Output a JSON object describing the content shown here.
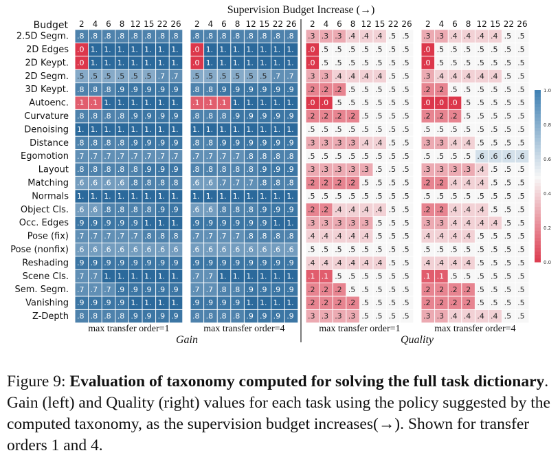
{
  "chart_data": {
    "type": "heatmap",
    "title": "Supervision Budget Increase (→)",
    "row_header": "Budget",
    "budgets": [
      "2",
      "4",
      "6",
      "8",
      "12",
      "15",
      "22",
      "26"
    ],
    "tasks": [
      "2.5D Segm.",
      "2D Edges",
      "2D Keypt.",
      "2D Segm.",
      "3D Keypt.",
      "Autoenc.",
      "Curvature",
      "Denoising",
      "Distance",
      "Egomotion",
      "Layout",
      "Matching",
      "Normals",
      "Object Cls.",
      "Occ. Edges",
      "Pose (fix)",
      "Pose (nonfix)",
      "Reshading",
      "Scene Cls.",
      "Sem. Segm.",
      "Vanishing",
      "Z-Depth"
    ],
    "group_labels": {
      "gain": "Gain",
      "quality": "Quality"
    },
    "colorbar_ticks": [
      "1.0",
      "0.8",
      "0.6",
      "0.4",
      "0.2",
      "0.0"
    ],
    "panels": [
      {
        "metric": "gain",
        "label": "max transfer order=1",
        "values": [
          [
            ".8",
            ".8",
            ".8",
            ".8",
            ".8",
            ".8",
            ".8",
            ".8"
          ],
          [
            ".0",
            "1.",
            "1.",
            "1.",
            "1.",
            "1.",
            "1.",
            "1."
          ],
          [
            ".0",
            "1.",
            "1.",
            "1.",
            "1.",
            "1.",
            "1.",
            "1."
          ],
          [
            ".5",
            ".5",
            ".5",
            ".5",
            ".5",
            ".5",
            ".7",
            ".7"
          ],
          [
            ".8",
            ".8",
            ".8",
            ".9",
            ".9",
            ".9",
            ".9",
            ".9"
          ],
          [
            ".1",
            ".1",
            "1.",
            "1.",
            "1.",
            "1.",
            "1.",
            "1."
          ],
          [
            ".8",
            ".8",
            ".8",
            ".8",
            ".9",
            ".9",
            ".9",
            ".9"
          ],
          [
            "1.",
            "1.",
            "1.",
            "1.",
            "1.",
            "1.",
            "1.",
            "1."
          ],
          [
            ".8",
            ".8",
            ".8",
            ".8",
            ".9",
            ".9",
            ".9",
            ".9"
          ],
          [
            ".7",
            ".7",
            ".7",
            ".7",
            ".7",
            ".7",
            ".7",
            ".7"
          ],
          [
            ".8",
            ".8",
            ".8",
            ".8",
            ".8",
            ".9",
            ".9",
            ".9"
          ],
          [
            ".6",
            ".6",
            ".6",
            ".6",
            ".8",
            ".8",
            ".8",
            ".8"
          ],
          [
            "1.",
            "1.",
            "1.",
            "1.",
            "1.",
            "1.",
            "1.",
            "1."
          ],
          [
            ".6",
            ".6",
            ".8",
            ".8",
            ".8",
            ".8",
            ".9",
            ".9"
          ],
          [
            ".9",
            ".9",
            ".9",
            ".9",
            ".9",
            "1.",
            "1.",
            "1."
          ],
          [
            ".7",
            ".7",
            ".7",
            ".7",
            ".7",
            ".8",
            ".8",
            ".8"
          ],
          [
            ".6",
            ".6",
            ".6",
            ".6",
            ".6",
            ".6",
            ".6",
            ".6"
          ],
          [
            ".9",
            ".9",
            ".9",
            ".9",
            ".9",
            ".9",
            ".9",
            ".9"
          ],
          [
            ".7",
            ".7",
            "1.",
            "1.",
            "1.",
            "1.",
            "1.",
            "1."
          ],
          [
            ".7",
            ".7",
            ".7",
            ".9",
            ".9",
            ".9",
            ".9",
            ".9"
          ],
          [
            ".9",
            ".9",
            ".9",
            ".9",
            "1.",
            "1.",
            "1.",
            "1."
          ],
          [
            ".8",
            ".8",
            ".8",
            ".8",
            ".9",
            ".9",
            ".9",
            ".9"
          ]
        ]
      },
      {
        "metric": "gain",
        "label": "max transfer order=4",
        "values": [
          [
            ".8",
            ".8",
            ".8",
            ".8",
            ".8",
            ".8",
            ".8",
            ".8"
          ],
          [
            ".0",
            "1.",
            "1.",
            "1.",
            "1.",
            "1.",
            "1.",
            "1."
          ],
          [
            ".0",
            "1.",
            "1.",
            "1.",
            "1.",
            "1.",
            "1.",
            "1."
          ],
          [
            ".5",
            ".5",
            ".5",
            ".5",
            ".5",
            ".5",
            ".7",
            ".7"
          ],
          [
            ".8",
            ".8",
            ".9",
            ".9",
            ".9",
            ".9",
            ".9",
            ".9"
          ],
          [
            ".1",
            ".1",
            ".1",
            "1.",
            "1.",
            "1.",
            "1.",
            "1."
          ],
          [
            ".8",
            ".8",
            ".8",
            ".9",
            ".9",
            ".9",
            ".9",
            ".9"
          ],
          [
            "1.",
            "1.",
            "1.",
            "1.",
            "1.",
            "1.",
            "1.",
            "1."
          ],
          [
            ".8",
            ".8",
            ".9",
            ".9",
            ".9",
            ".9",
            ".9",
            ".9"
          ],
          [
            ".7",
            ".7",
            ".7",
            ".7",
            ".8",
            ".8",
            ".8",
            ".8"
          ],
          [
            ".8",
            ".8",
            ".8",
            ".8",
            ".8",
            ".9",
            ".9",
            ".9"
          ],
          [
            ".6",
            ".6",
            ".7",
            ".7",
            ".7",
            ".8",
            ".8",
            ".8"
          ],
          [
            "1.",
            "1.",
            "1.",
            "1.",
            "1.",
            "1.",
            "1.",
            "1."
          ],
          [
            ".6",
            ".6",
            ".8",
            ".8",
            ".8",
            ".9",
            ".9",
            ".9"
          ],
          [
            ".9",
            ".9",
            ".9",
            ".9",
            ".9",
            ".9",
            "1.",
            "1."
          ],
          [
            ".7",
            ".7",
            ".7",
            ".7",
            ".8",
            ".8",
            ".8",
            ".8"
          ],
          [
            ".6",
            ".6",
            ".6",
            ".6",
            ".6",
            ".6",
            ".6",
            ".6"
          ],
          [
            ".9",
            ".9",
            ".9",
            ".9",
            ".9",
            ".9",
            ".9",
            ".9"
          ],
          [
            ".7",
            ".7",
            "1.",
            "1.",
            "1.",
            "1.",
            "1.",
            "1."
          ],
          [
            ".7",
            ".7",
            ".8",
            ".8",
            ".9",
            ".9",
            ".9",
            ".9"
          ],
          [
            ".9",
            ".9",
            ".9",
            ".9",
            "1.",
            "1.",
            "1.",
            "1."
          ],
          [
            ".8",
            ".8",
            ".8",
            ".8",
            ".9",
            ".9",
            ".9",
            ".9"
          ]
        ]
      },
      {
        "metric": "quality",
        "label": "max transfer order=1",
        "values": [
          [
            ".3",
            ".3",
            ".3",
            ".4",
            ".4",
            ".4",
            ".5",
            ".5"
          ],
          [
            ".0",
            ".5",
            ".5",
            ".5",
            ".5",
            ".5",
            ".5",
            ".5"
          ],
          [
            ".0",
            ".5",
            ".5",
            ".5",
            ".5",
            ".5",
            ".5",
            ".5"
          ],
          [
            ".3",
            ".3",
            ".4",
            ".4",
            ".4",
            ".4",
            ".5",
            ".5"
          ],
          [
            ".2",
            ".2",
            ".2",
            ".5",
            ".5",
            ".5",
            ".5",
            ".5"
          ],
          [
            ".0",
            ".0",
            ".5",
            ".5",
            ".5",
            ".5",
            ".5",
            ".5"
          ],
          [
            ".2",
            ".2",
            ".2",
            ".2",
            ".5",
            ".5",
            ".5",
            ".5"
          ],
          [
            ".5",
            ".5",
            ".5",
            ".5",
            ".5",
            ".5",
            ".5",
            ".5"
          ],
          [
            ".3",
            ".3",
            ".3",
            ".3",
            ".4",
            ".4",
            ".5",
            ".5"
          ],
          [
            ".5",
            ".5",
            ".5",
            ".5",
            ".5",
            ".5",
            ".5",
            ".5"
          ],
          [
            ".3",
            ".3",
            ".3",
            ".3",
            ".3",
            ".5",
            ".5",
            ".5"
          ],
          [
            ".2",
            ".2",
            ".2",
            ".2",
            ".5",
            ".5",
            ".5",
            ".5"
          ],
          [
            ".5",
            ".5",
            ".5",
            ".5",
            ".5",
            ".5",
            ".5",
            ".5"
          ],
          [
            ".2",
            ".2",
            ".4",
            ".4",
            ".4",
            ".4",
            ".5",
            ".5"
          ],
          [
            ".3",
            ".3",
            ".3",
            ".3",
            ".3",
            ".5",
            ".5",
            ".5"
          ],
          [
            ".4",
            ".4",
            ".4",
            ".4",
            ".4",
            ".5",
            ".5",
            ".5"
          ],
          [
            ".5",
            ".5",
            ".5",
            ".5",
            ".5",
            ".5",
            ".5",
            ".5"
          ],
          [
            ".4",
            ".4",
            ".4",
            ".4",
            ".4",
            ".4",
            ".5",
            ".5"
          ],
          [
            ".1",
            ".1",
            ".5",
            ".5",
            ".5",
            ".5",
            ".5",
            ".5"
          ],
          [
            ".2",
            ".2",
            ".2",
            ".5",
            ".5",
            ".5",
            ".5",
            ".5"
          ],
          [
            ".2",
            ".2",
            ".2",
            ".2",
            ".5",
            ".5",
            ".5",
            ".5"
          ],
          [
            ".3",
            ".3",
            ".3",
            ".3",
            ".5",
            ".5",
            ".5",
            ".5"
          ]
        ]
      },
      {
        "metric": "quality",
        "label": "max transfer order=4",
        "values": [
          [
            ".3",
            ".3",
            ".4",
            ".4",
            ".4",
            ".4",
            ".5",
            ".5"
          ],
          [
            ".0",
            ".5",
            ".5",
            ".5",
            ".5",
            ".5",
            ".5",
            ".5"
          ],
          [
            ".0",
            ".5",
            ".5",
            ".5",
            ".5",
            ".5",
            ".5",
            ".5"
          ],
          [
            ".3",
            ".4",
            ".4",
            ".4",
            ".4",
            ".4",
            ".5",
            ".5"
          ],
          [
            ".2",
            ".2",
            ".5",
            ".5",
            ".5",
            ".5",
            ".5",
            ".5"
          ],
          [
            ".0",
            ".0",
            ".0",
            ".5",
            ".5",
            ".5",
            ".5",
            ".5"
          ],
          [
            ".2",
            ".2",
            ".2",
            ".5",
            ".5",
            ".5",
            ".5",
            ".5"
          ],
          [
            ".5",
            ".5",
            ".5",
            ".5",
            ".5",
            ".5",
            ".5",
            ".5"
          ],
          [
            ".3",
            ".3",
            ".4",
            ".4",
            ".5",
            ".5",
            ".5",
            ".5"
          ],
          [
            ".5",
            ".5",
            ".5",
            ".5",
            ".6",
            ".6",
            ".6",
            ".6"
          ],
          [
            ".3",
            ".3",
            ".3",
            ".3",
            ".4",
            ".5",
            ".5",
            ".5"
          ],
          [
            ".2",
            ".2",
            ".4",
            ".4",
            ".4",
            ".5",
            ".5",
            ".5"
          ],
          [
            ".5",
            ".5",
            ".5",
            ".5",
            ".5",
            ".5",
            ".5",
            ".5"
          ],
          [
            ".2",
            ".2",
            ".4",
            ".4",
            ".4",
            ".5",
            ".5",
            ".5"
          ],
          [
            ".3",
            ".3",
            ".4",
            ".4",
            ".4",
            ".4",
            ".5",
            ".5"
          ],
          [
            ".4",
            ".4",
            ".4",
            ".4",
            ".5",
            ".5",
            ".5",
            ".5"
          ],
          [
            ".5",
            ".5",
            ".5",
            ".5",
            ".5",
            ".5",
            ".5",
            ".5"
          ],
          [
            ".4",
            ".4",
            ".4",
            ".4",
            ".5",
            ".5",
            ".5",
            ".5"
          ],
          [
            ".1",
            ".1",
            ".5",
            ".5",
            ".5",
            ".5",
            ".5",
            ".5"
          ],
          [
            ".2",
            ".2",
            ".2",
            ".2",
            ".5",
            ".5",
            ".5",
            ".5"
          ],
          [
            ".2",
            ".2",
            ".2",
            ".2",
            ".5",
            ".5",
            ".5",
            ".5"
          ],
          [
            ".3",
            ".3",
            ".4",
            ".4",
            ".4",
            ".4",
            ".5",
            ".5"
          ]
        ]
      }
    ]
  },
  "caption": {
    "prefix": "Figure 9: ",
    "bold": "Evaluation of taxonomy computed for solving the full task dictionary",
    "rest": ". Gain (left) and Quality (right) values for each task using the policy suggested by the computed taxonomy, as the supervision budget increases(→). Shown for transfer orders 1 and 4."
  }
}
